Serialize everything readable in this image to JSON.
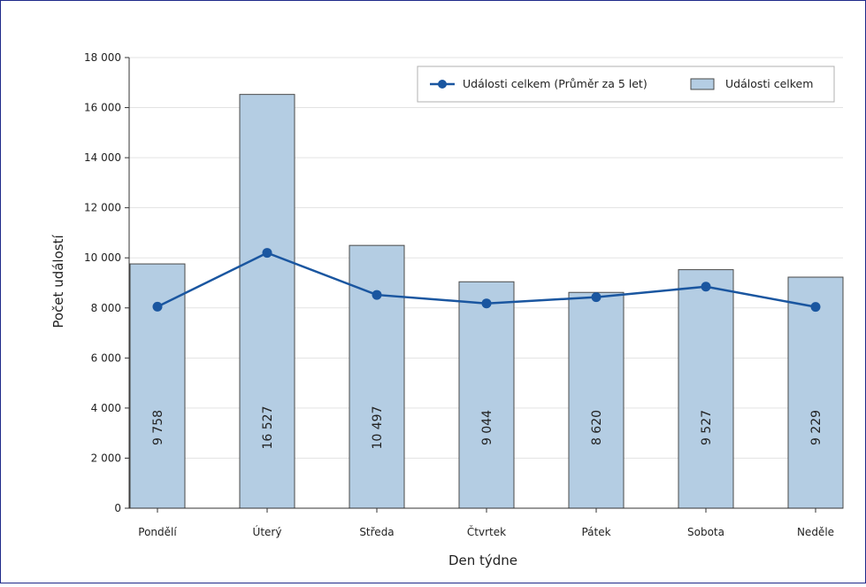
{
  "chart_data": {
    "type": "bar",
    "title": "",
    "xlabel": "Den týdne",
    "ylabel": "Počet událostí",
    "categories": [
      "Pondělí",
      "Úterý",
      "Středa",
      "Čtvrtek",
      "Pátek",
      "Sobota",
      "Neděle"
    ],
    "ylim": [
      0,
      18000
    ],
    "yticks": [
      0,
      2000,
      4000,
      6000,
      8000,
      10000,
      12000,
      14000,
      16000,
      18000
    ],
    "ytick_labels": [
      "0",
      "2 000",
      "4 000",
      "6 000",
      "8 000",
      "10 000",
      "12 000",
      "14 000",
      "16 000",
      "18 000"
    ],
    "grid": "horizontal",
    "legend_position": "top-right",
    "series": [
      {
        "name": "Události celkem",
        "type": "bar",
        "color": "#b4cde3",
        "edge_color": "#4a4a4a",
        "values": [
          9758,
          16527,
          10497,
          9044,
          8620,
          9527,
          9229
        ],
        "data_labels": [
          "9 758",
          "16 527",
          "10 497",
          "9 044",
          "8 620",
          "9 527",
          "9 229"
        ]
      },
      {
        "name": "Události celkem (Průměr za 5 let)",
        "type": "line",
        "color": "#1a56a0",
        "values": [
          8050,
          10200,
          8520,
          8180,
          8430,
          8850,
          8040
        ]
      }
    ]
  }
}
